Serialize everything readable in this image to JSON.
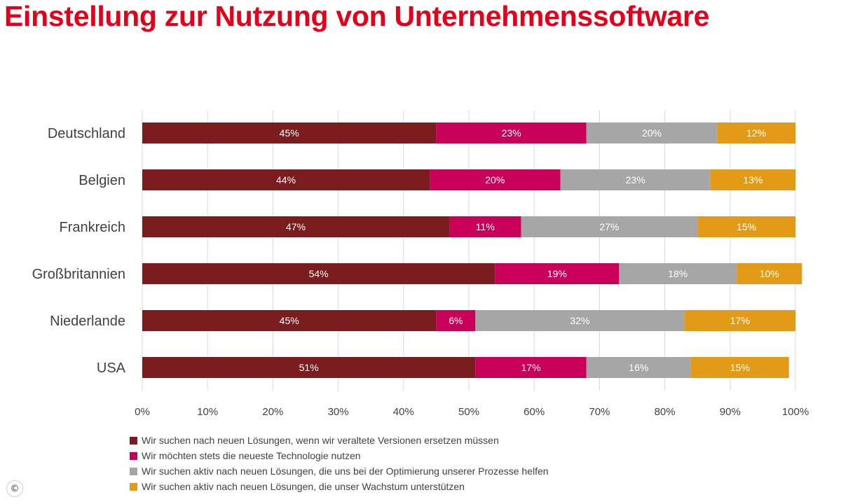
{
  "title": "Einstellung zur Nutzung von Unternehmenssoftware",
  "copyright": "©",
  "chart_data": {
    "type": "bar",
    "orientation": "horizontal",
    "stacked": true,
    "title": "Einstellung zur Nutzung von Unternehmenssoftware",
    "categories": [
      "Deutschland",
      "Belgien",
      "Frankreich",
      "Großbritannien",
      "Niederlande",
      "USA"
    ],
    "series": [
      {
        "name": "Wir suchen nach neuen Lösungen, wenn wir veraltete Versionen ersetzen müssen",
        "color": "#7b1c1e",
        "values": [
          45,
          44,
          47,
          54,
          45,
          51
        ]
      },
      {
        "name": "Wir möchten stets die neueste Technologie nutzen",
        "color": "#c8005a",
        "values": [
          23,
          20,
          11,
          19,
          6,
          17
        ]
      },
      {
        "name": "Wir suchen aktiv nach neuen Lösungen, die uns bei der Optimierung unserer Prozesse helfen",
        "color": "#a6a6a6",
        "values": [
          20,
          23,
          27,
          18,
          32,
          16
        ]
      },
      {
        "name": "Wir suchen aktiv nach neuen Lösungen, die unser Wachstum unterstützen",
        "color": "#e39b17",
        "values": [
          12,
          13,
          15,
          10,
          17,
          15
        ]
      }
    ],
    "xlim": [
      0,
      100
    ],
    "x_ticks": [
      "0%",
      "10%",
      "20%",
      "30%",
      "40%",
      "50%",
      "60%",
      "70%",
      "80%",
      "90%",
      "100%"
    ],
    "value_suffix": "%",
    "grid": true,
    "legend_position": "bottom"
  }
}
